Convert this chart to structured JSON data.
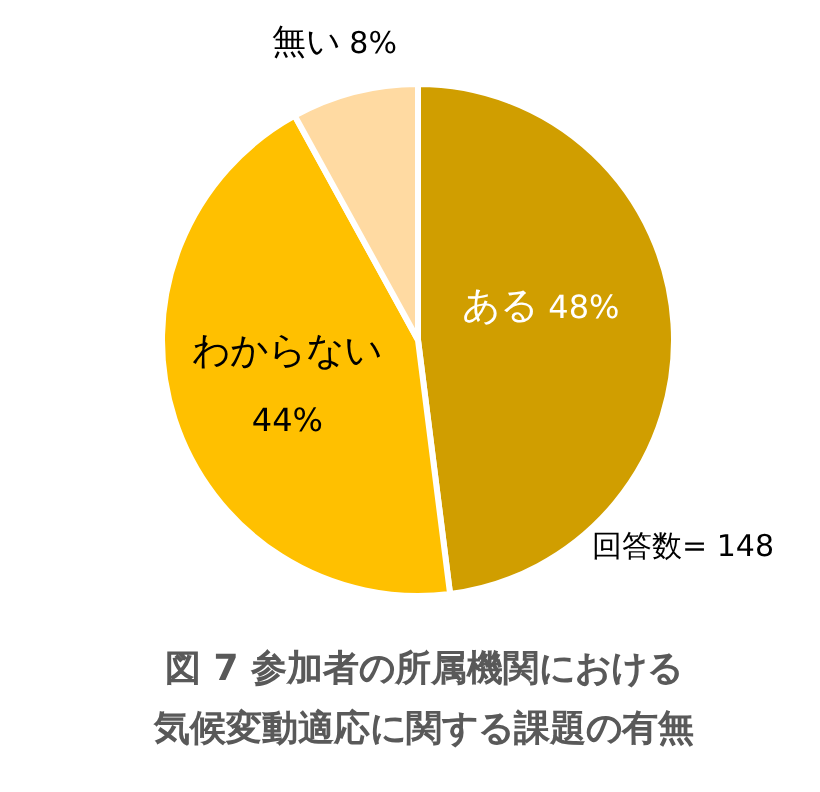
{
  "chart_data": {
    "type": "pie",
    "title": "図 7 参加者の所属機関における",
    "subtitle": "気候変動適応に関する課題の有無",
    "categories": [
      "ある",
      "わからない",
      "無い"
    ],
    "values": [
      48,
      44,
      8
    ],
    "colors": [
      "#d09e00",
      "#ffc000",
      "#ffdaa2"
    ],
    "value_labels": [
      "48%",
      "44%",
      "8%"
    ],
    "annotations": [
      "回答数= 148"
    ],
    "legend": false
  }
}
